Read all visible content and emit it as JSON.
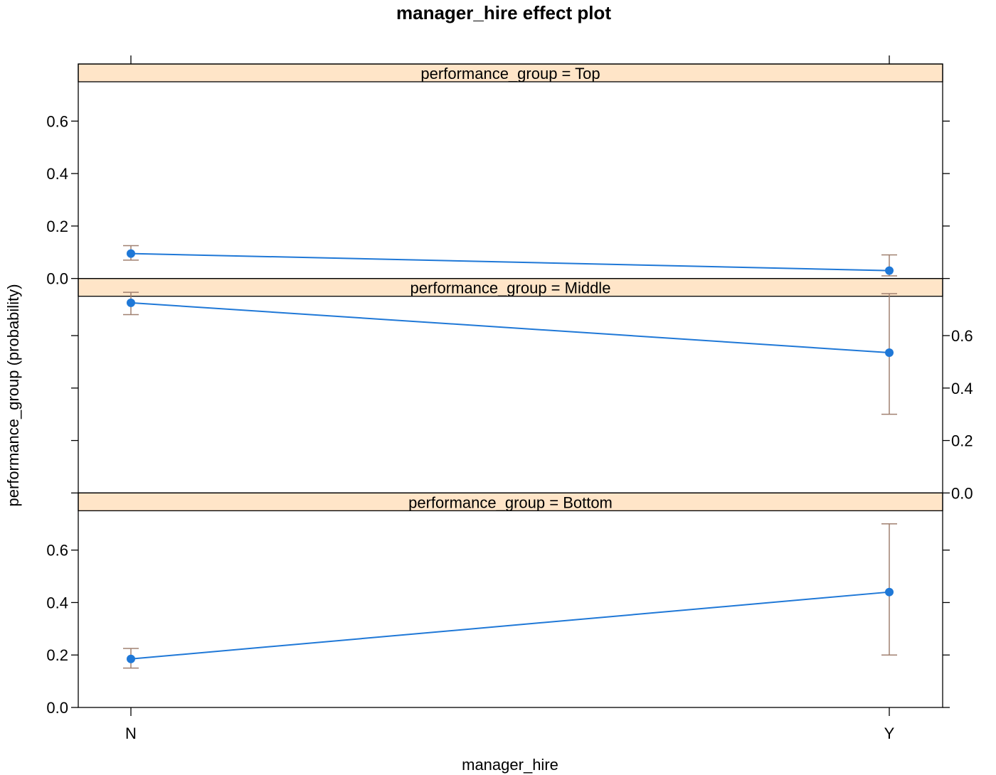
{
  "chart_data": {
    "type": "line",
    "title": "manager_hire effect plot",
    "xlabel": "manager_hire",
    "ylabel": "performance_group (probability)",
    "categories": [
      "N",
      "Y"
    ],
    "ylim": [
      0,
      0.75
    ],
    "yticks": [
      "0.0",
      "0.2",
      "0.4",
      "0.6"
    ],
    "colors": {
      "line": "#1f78d7",
      "errorbar": "#a08070",
      "strip_fill": "#ffe5c8",
      "frame": "#000000"
    },
    "panels": [
      {
        "strip": "performance_group = Top",
        "values": [
          0.095,
          0.03
        ],
        "lower": [
          0.07,
          0.01
        ],
        "upper": [
          0.125,
          0.09
        ]
      },
      {
        "strip": "performance_group = Middle",
        "values": [
          0.725,
          0.535
        ],
        "lower": [
          0.68,
          0.3
        ],
        "upper": [
          0.765,
          0.76
        ]
      },
      {
        "strip": "performance_group = Bottom",
        "values": [
          0.185,
          0.44
        ],
        "lower": [
          0.15,
          0.2
        ],
        "upper": [
          0.225,
          0.7
        ]
      }
    ]
  }
}
